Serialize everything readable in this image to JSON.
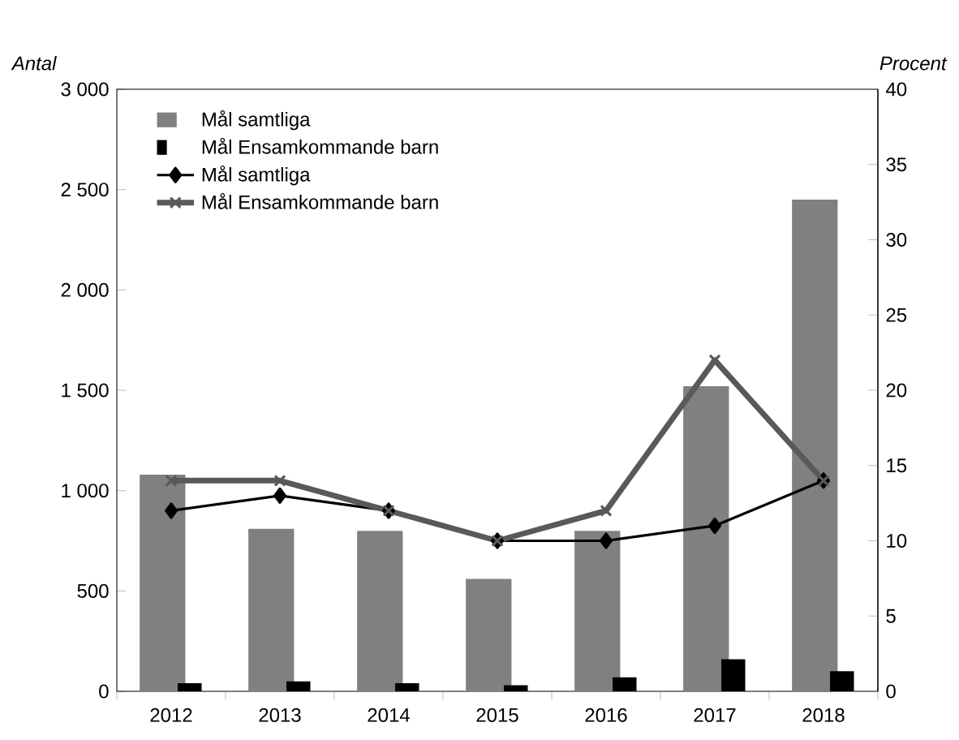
{
  "chart_data": {
    "type": "bar",
    "ylabel": "Antal",
    "y2label": "Procent",
    "categories": [
      "2012",
      "2013",
      "2014",
      "2015",
      "2016",
      "2017",
      "2018"
    ],
    "series": [
      {
        "name": "Mål samtliga",
        "color": "#808080",
        "values": [
          1080,
          810,
          800,
          560,
          800,
          1520,
          2450
        ]
      },
      {
        "name": "Mål Ensamkommande barn",
        "color": "#000000",
        "values": [
          40,
          50,
          40,
          30,
          70,
          160,
          100
        ]
      },
      {
        "name": "Mål samtliga",
        "type": "line",
        "axis": "y2",
        "marker": "diamond",
        "color": "#000000",
        "values": [
          12,
          13,
          12,
          10,
          10,
          11,
          14
        ]
      },
      {
        "name": "Mål Ensamkommande barn",
        "type": "line",
        "axis": "y2",
        "marker": "cross",
        "color": "#595959",
        "values": [
          14,
          14,
          12,
          10,
          12,
          22,
          14
        ]
      }
    ],
    "ylim": [
      0,
      3000
    ],
    "yticks": [
      0,
      500,
      {
        "value": 1000,
        "label": "1 000"
      },
      {
        "value": 1500,
        "label": "1 500"
      },
      {
        "value": 2000,
        "label": "2 000"
      },
      {
        "value": 2500,
        "label": "2 500"
      },
      {
        "value": 3000,
        "label": "3 000"
      }
    ],
    "y2lim": [
      0,
      40
    ],
    "y2ticks": [
      0,
      5,
      10,
      15,
      20,
      25,
      30,
      35,
      40
    ],
    "legend": "top left",
    "grid": false
  }
}
